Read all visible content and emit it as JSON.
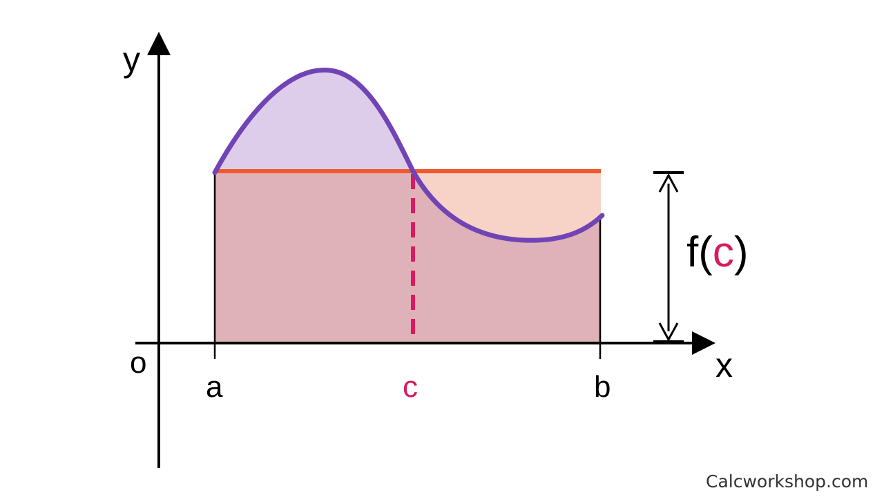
{
  "labels": {
    "y_axis": "y",
    "x_axis": "x",
    "origin": "o",
    "a": "a",
    "b": "b",
    "c": "c",
    "fc_prefix": "f(",
    "fc_c": "c",
    "fc_suffix": ")"
  },
  "watermark": "Calcworkshop.com",
  "colors": {
    "curve": "#7044b4",
    "average_line": "#ee5a2f",
    "c_marker": "#d81b60",
    "rectangle_fill": "#dfb1b8",
    "area_above_line": "#ddcdeb",
    "area_below_line": "#f7d2c7",
    "axes": "#000000"
  }
}
